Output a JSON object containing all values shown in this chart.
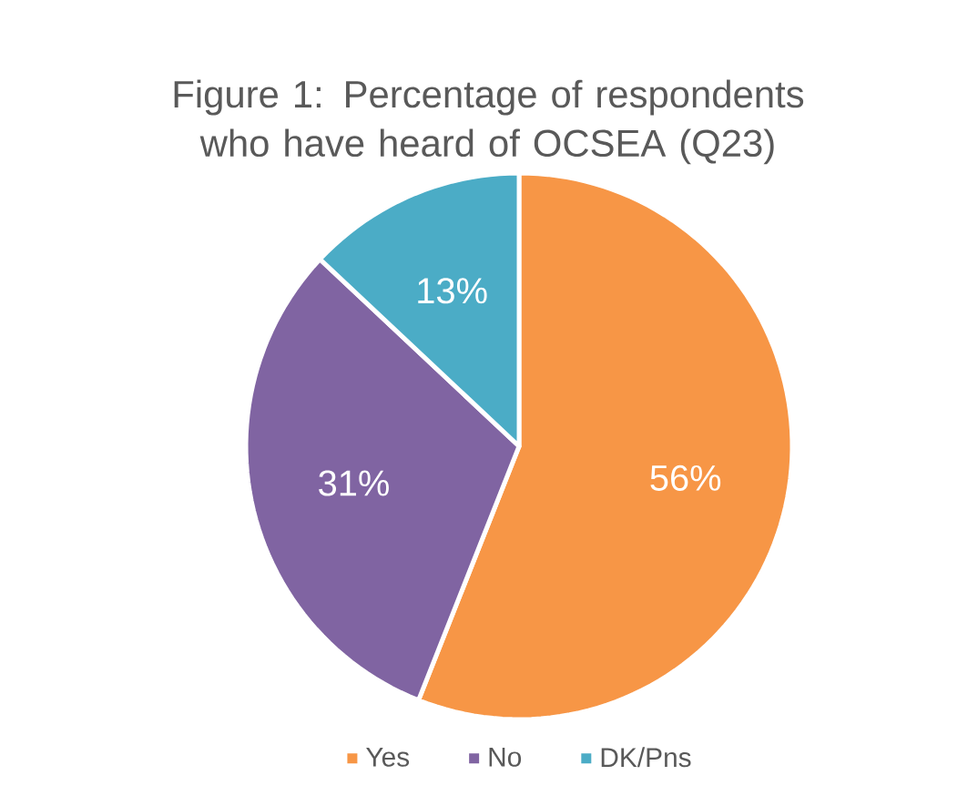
{
  "chart_data": {
    "type": "pie",
    "title": "Figure 1: Percentage of respondents who have heard of OCSEA (Q23)",
    "categories": [
      "Yes",
      "No",
      "DK/Pns"
    ],
    "values": [
      56,
      31,
      13
    ],
    "colors": [
      "#f79646",
      "#8064a2",
      "#4bacc6"
    ],
    "value_labels": [
      "56%",
      "31%",
      "13%"
    ],
    "legend": "bottom"
  }
}
